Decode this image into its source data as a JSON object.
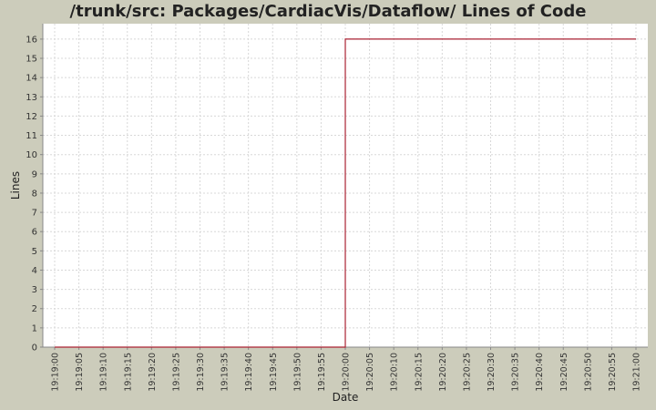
{
  "chart_data": {
    "type": "line",
    "title": "/trunk/src: Packages/CardiacVis/Dataflow/ Lines of Code",
    "xlabel": "Date",
    "ylabel": "Lines",
    "x_ticks": [
      "19:19:00",
      "19:19:05",
      "19:19:10",
      "19:19:15",
      "19:19:20",
      "19:19:25",
      "19:19:30",
      "19:19:35",
      "19:19:40",
      "19:19:45",
      "19:19:50",
      "19:19:55",
      "19:20:00",
      "19:20:05",
      "19:20:10",
      "19:20:15",
      "19:20:20",
      "19:20:25",
      "19:20:30",
      "19:20:35",
      "19:20:40",
      "19:20:45",
      "19:20:50",
      "19:20:55",
      "19:21:00"
    ],
    "y_ticks": [
      0,
      1,
      2,
      3,
      4,
      5,
      6,
      7,
      8,
      9,
      10,
      11,
      12,
      13,
      14,
      15,
      16
    ],
    "ylim": [
      0,
      16.8
    ],
    "grid": true,
    "line_style": "step",
    "series": [
      {
        "x": [
          "19:19:00",
          "19:20:00",
          "19:20:00",
          "19:21:00"
        ],
        "values": [
          0,
          0,
          16,
          16
        ],
        "color": "#aa2233"
      }
    ]
  }
}
